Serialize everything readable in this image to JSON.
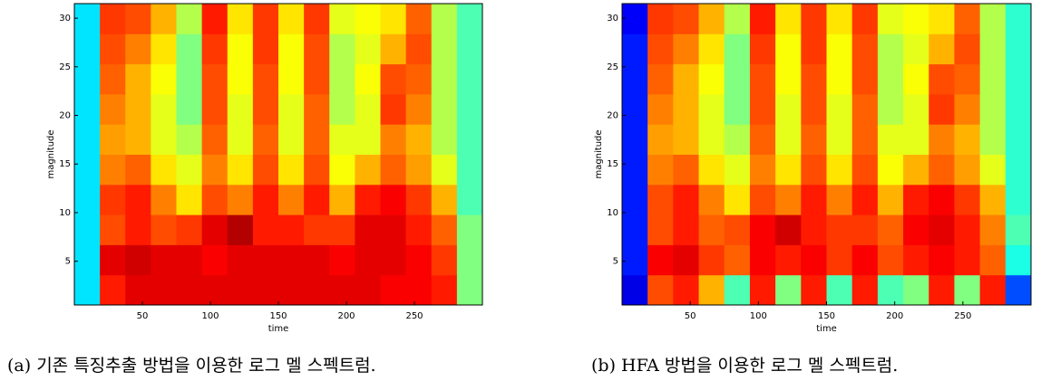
{
  "chart_data": [
    {
      "type": "heatmap",
      "colormap": "jet",
      "xlabel": "time",
      "ylabel": "magnitude",
      "caption": "(a) 기존 특징추출 방법을 이용한 로그 멜 스펙트럼.",
      "xlim": [
        0,
        300
      ],
      "ylim": [
        0.5,
        31.5
      ],
      "xticks": [
        50,
        100,
        150,
        200,
        250
      ],
      "yticks": [
        5,
        10,
        15,
        20,
        25,
        30
      ],
      "z": [
        [
          0.35,
          0.85,
          0.9,
          0.9,
          0.9,
          0.9,
          0.9,
          0.9,
          0.9,
          0.9,
          0.9,
          0.9,
          0.88,
          0.88,
          0.85,
          0.5
        ],
        [
          0.35,
          0.9,
          0.92,
          0.9,
          0.9,
          0.88,
          0.9,
          0.9,
          0.9,
          0.9,
          0.88,
          0.9,
          0.9,
          0.88,
          0.82,
          0.5
        ],
        [
          0.35,
          0.8,
          0.85,
          0.8,
          0.82,
          0.9,
          0.95,
          0.85,
          0.85,
          0.82,
          0.82,
          0.9,
          0.9,
          0.85,
          0.78,
          0.5
        ],
        [
          0.35,
          0.82,
          0.85,
          0.75,
          0.65,
          0.8,
          0.75,
          0.85,
          0.75,
          0.85,
          0.7,
          0.85,
          0.88,
          0.82,
          0.7,
          0.45
        ],
        [
          0.35,
          0.75,
          0.78,
          0.65,
          0.6,
          0.75,
          0.65,
          0.8,
          0.65,
          0.8,
          0.62,
          0.7,
          0.78,
          0.72,
          0.6,
          0.45
        ],
        [
          0.35,
          0.72,
          0.7,
          0.6,
          0.55,
          0.78,
          0.6,
          0.78,
          0.6,
          0.78,
          0.6,
          0.6,
          0.75,
          0.7,
          0.55,
          0.45
        ],
        [
          0.35,
          0.75,
          0.7,
          0.6,
          0.5,
          0.8,
          0.6,
          0.8,
          0.6,
          0.78,
          0.55,
          0.6,
          0.82,
          0.75,
          0.55,
          0.45
        ],
        [
          0.35,
          0.78,
          0.7,
          0.62,
          0.5,
          0.8,
          0.62,
          0.8,
          0.62,
          0.8,
          0.55,
          0.62,
          0.8,
          0.78,
          0.55,
          0.45
        ],
        [
          0.35,
          0.8,
          0.75,
          0.65,
          0.5,
          0.82,
          0.62,
          0.82,
          0.62,
          0.8,
          0.55,
          0.6,
          0.7,
          0.8,
          0.55,
          0.45
        ],
        [
          0.35,
          0.82,
          0.8,
          0.7,
          0.55,
          0.85,
          0.65,
          0.82,
          0.65,
          0.82,
          0.6,
          0.62,
          0.65,
          0.78,
          0.55,
          0.45
        ]
      ]
    },
    {
      "type": "heatmap",
      "colormap": "jet",
      "xlabel": "time",
      "ylabel": "magnitude",
      "caption": "(b) HFA 방법을 이용한 로그 멜 스펙트럼.",
      "xlim": [
        0,
        300
      ],
      "ylim": [
        0.5,
        31.5
      ],
      "xticks": [
        50,
        100,
        150,
        200,
        250
      ],
      "yticks": [
        5,
        10,
        15,
        20,
        25,
        30
      ],
      "z": [
        [
          0.1,
          0.8,
          0.85,
          0.7,
          0.45,
          0.85,
          0.5,
          0.85,
          0.45,
          0.85,
          0.45,
          0.5,
          0.85,
          0.5,
          0.85,
          0.2
        ],
        [
          0.15,
          0.88,
          0.9,
          0.82,
          0.78,
          0.88,
          0.85,
          0.88,
          0.82,
          0.88,
          0.8,
          0.85,
          0.88,
          0.85,
          0.78,
          0.4
        ],
        [
          0.15,
          0.8,
          0.85,
          0.78,
          0.8,
          0.88,
          0.92,
          0.85,
          0.82,
          0.82,
          0.78,
          0.88,
          0.9,
          0.85,
          0.75,
          0.45
        ],
        [
          0.15,
          0.8,
          0.85,
          0.75,
          0.65,
          0.8,
          0.75,
          0.85,
          0.75,
          0.85,
          0.7,
          0.85,
          0.88,
          0.82,
          0.7,
          0.42
        ],
        [
          0.15,
          0.75,
          0.78,
          0.65,
          0.6,
          0.75,
          0.65,
          0.8,
          0.65,
          0.8,
          0.62,
          0.7,
          0.78,
          0.72,
          0.6,
          0.42
        ],
        [
          0.15,
          0.72,
          0.7,
          0.6,
          0.55,
          0.78,
          0.6,
          0.78,
          0.6,
          0.78,
          0.6,
          0.6,
          0.75,
          0.7,
          0.55,
          0.42
        ],
        [
          0.15,
          0.75,
          0.7,
          0.6,
          0.5,
          0.8,
          0.6,
          0.8,
          0.6,
          0.78,
          0.55,
          0.6,
          0.82,
          0.75,
          0.55,
          0.42
        ],
        [
          0.15,
          0.78,
          0.7,
          0.62,
          0.5,
          0.8,
          0.62,
          0.8,
          0.62,
          0.8,
          0.55,
          0.62,
          0.8,
          0.78,
          0.55,
          0.42
        ],
        [
          0.15,
          0.8,
          0.75,
          0.65,
          0.5,
          0.82,
          0.62,
          0.82,
          0.62,
          0.8,
          0.55,
          0.6,
          0.7,
          0.8,
          0.55,
          0.42
        ],
        [
          0.12,
          0.82,
          0.8,
          0.7,
          0.55,
          0.85,
          0.65,
          0.82,
          0.65,
          0.82,
          0.6,
          0.62,
          0.65,
          0.78,
          0.55,
          0.42
        ]
      ]
    }
  ]
}
